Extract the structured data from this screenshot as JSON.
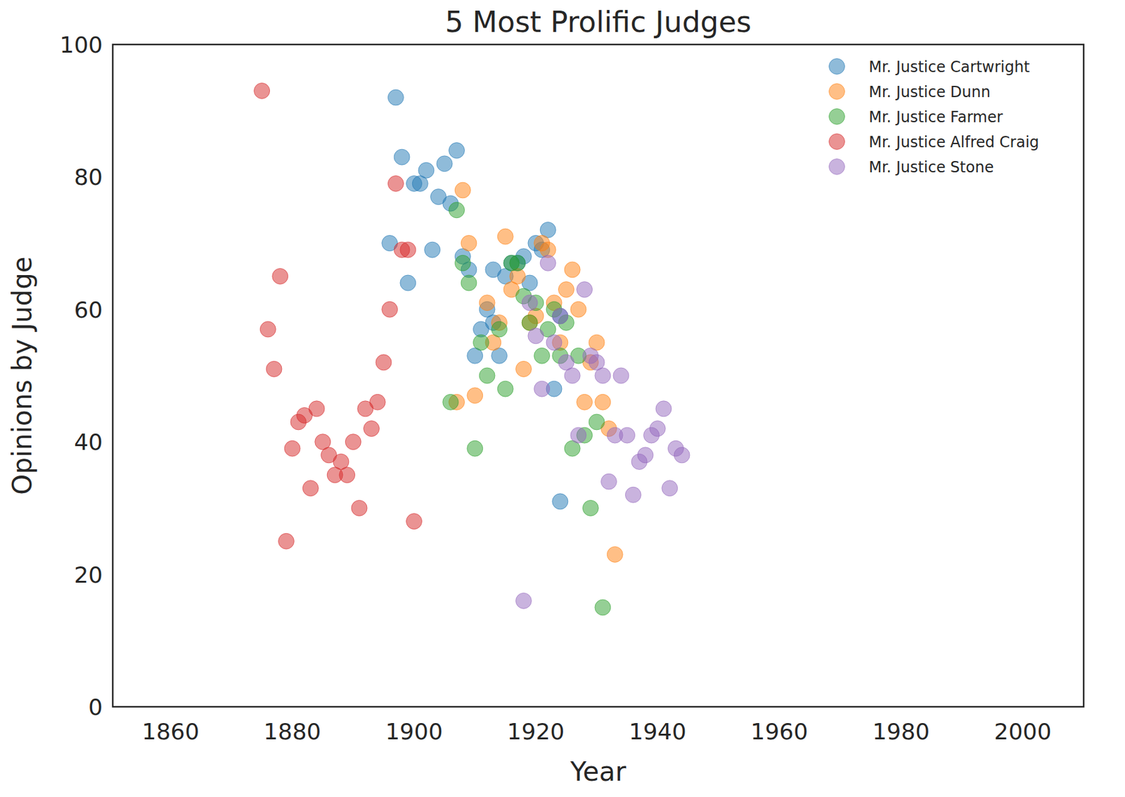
{
  "chart_data": {
    "type": "scatter",
    "title": "5 Most Prolific Judges",
    "x_label": "Year",
    "y_label": "Opinions by Judge",
    "xlim": [
      1850.5,
      2010
    ],
    "ylim": [
      0,
      100
    ],
    "xticks": [
      1860,
      1880,
      1900,
      1920,
      1940,
      1960,
      1980,
      2000
    ],
    "yticks": [
      0,
      20,
      40,
      60,
      80,
      100
    ],
    "grid": false,
    "legend": "upper right",
    "marker": "circle",
    "series": [
      {
        "name": "Mr. Justice Cartwright",
        "color": "#1f77b4",
        "x": [
          1897,
          1898,
          1896,
          1899,
          1900,
          1901,
          1902,
          1903,
          1904,
          1905,
          1906,
          1907,
          1908,
          1909,
          1910,
          1911,
          1912,
          1913,
          1914,
          1913,
          1915,
          1916,
          1917,
          1918,
          1919,
          1920,
          1921,
          1922,
          1923,
          1924,
          1924
        ],
        "values": [
          92,
          83,
          70,
          64,
          79,
          79,
          81,
          69,
          77,
          82,
          76,
          84,
          68,
          66,
          53,
          57,
          60,
          66,
          53,
          58,
          65,
          67,
          67,
          68,
          64,
          70,
          69,
          72,
          48,
          31,
          59
        ]
      },
      {
        "name": "Mr. Justice Dunn",
        "color": "#ff7f0e",
        "x": [
          1908,
          1909,
          1907,
          1910,
          1912,
          1913,
          1914,
          1915,
          1916,
          1917,
          1918,
          1919,
          1920,
          1921,
          1922,
          1923,
          1924,
          1925,
          1926,
          1927,
          1928,
          1929,
          1930,
          1931,
          1932,
          1933
        ],
        "values": [
          78,
          70,
          46,
          47,
          61,
          55,
          58,
          71,
          63,
          65,
          51,
          58,
          59,
          70,
          69,
          61,
          55,
          63,
          66,
          60,
          46,
          52,
          55,
          46,
          42,
          23
        ]
      },
      {
        "name": "Mr. Justice Farmer",
        "color": "#2ca02c",
        "x": [
          1906,
          1907,
          1908,
          1909,
          1910,
          1911,
          1912,
          1914,
          1915,
          1916,
          1917,
          1918,
          1919,
          1920,
          1921,
          1922,
          1923,
          1924,
          1925,
          1926,
          1927,
          1928,
          1929,
          1930,
          1931
        ],
        "values": [
          46,
          75,
          67,
          64,
          39,
          55,
          50,
          57,
          48,
          67,
          67,
          62,
          58,
          61,
          53,
          57,
          60,
          53,
          58,
          39,
          53,
          41,
          30,
          43,
          15
        ]
      },
      {
        "name": "Mr. Justice Alfred Craig",
        "color": "#d62728",
        "x": [
          1875,
          1878,
          1876,
          1877,
          1879,
          1880,
          1881,
          1882,
          1884,
          1883,
          1885,
          1886,
          1887,
          1888,
          1889,
          1890,
          1891,
          1892,
          1893,
          1894,
          1895,
          1896,
          1897,
          1898,
          1899,
          1900
        ],
        "values": [
          93,
          65,
          57,
          51,
          25,
          39,
          43,
          44,
          45,
          33,
          40,
          38,
          35,
          37,
          35,
          40,
          30,
          45,
          42,
          46,
          52,
          60,
          79,
          69,
          69,
          28
        ]
      },
      {
        "name": "Mr. Justice Stone",
        "color": "#9467bd",
        "x": [
          1918,
          1919,
          1920,
          1921,
          1922,
          1923,
          1924,
          1925,
          1926,
          1927,
          1928,
          1929,
          1930,
          1931,
          1932,
          1933,
          1934,
          1935,
          1936,
          1937,
          1938,
          1939,
          1940,
          1941,
          1942,
          1943,
          1944
        ],
        "values": [
          16,
          61,
          56,
          48,
          67,
          55,
          59,
          52,
          50,
          41,
          63,
          53,
          52,
          50,
          34,
          41,
          50,
          41,
          32,
          37,
          38,
          41,
          42,
          45,
          33,
          39,
          38
        ]
      }
    ]
  }
}
